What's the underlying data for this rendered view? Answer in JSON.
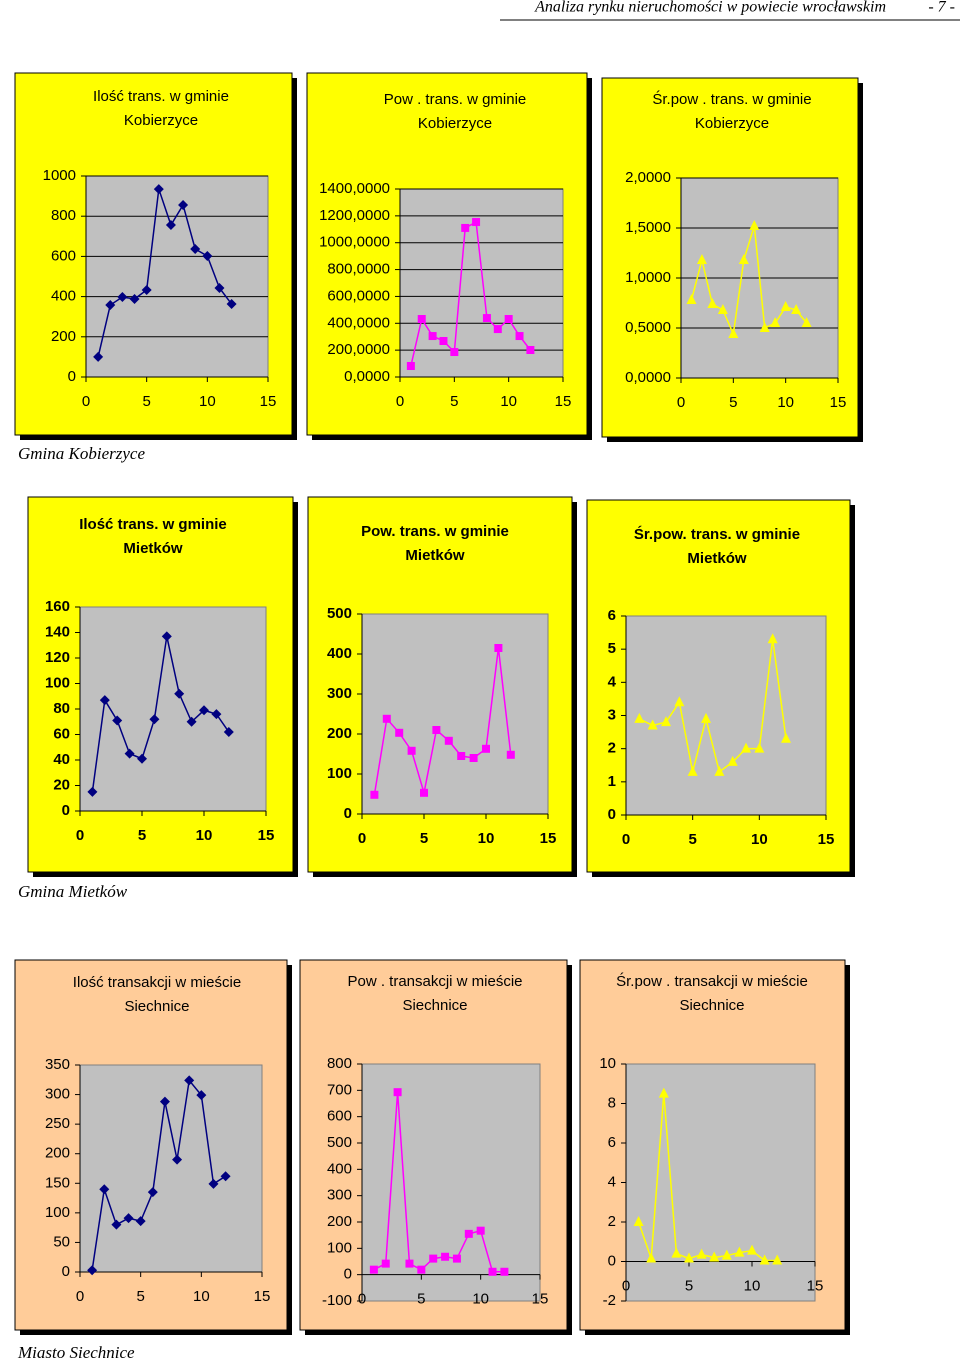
{
  "header": {
    "title": "Analiza rynku nieruchomości  w powiecie wrocławskim",
    "page": "- 7 -"
  },
  "sections": [
    "Gmina Kobierzyce",
    "Gmina Mietków",
    "Miasto Siechnice"
  ],
  "chart_data": [
    {
      "type": "line",
      "title": [
        "Ilość trans. w gminie",
        "Kobierzyce"
      ],
      "background": "#ffff00",
      "color": "#000080",
      "marker": "diamond",
      "x": [
        1,
        2,
        3,
        4,
        5,
        6,
        7,
        8,
        9,
        10,
        11,
        12
      ],
      "values": [
        100,
        358,
        398,
        388,
        433,
        935,
        756,
        856,
        637,
        602,
        443,
        363
      ],
      "xlim": [
        0,
        15
      ],
      "xticks": [
        0,
        5,
        10,
        15
      ],
      "ylim": [
        0,
        1000
      ],
      "yticks": [
        0,
        200,
        400,
        600,
        800,
        1000
      ],
      "grid": true
    },
    {
      "type": "line",
      "title": [
        "Pow . trans. w gminie",
        "Kobierzyce"
      ],
      "background": "#ffff00",
      "color": "#ff00ff",
      "marker": "square",
      "x": [
        1,
        2,
        3,
        4,
        5,
        6,
        7,
        8,
        9,
        10,
        11,
        12
      ],
      "values": [
        82,
        432,
        305,
        268,
        186,
        1110,
        1154,
        439,
        357,
        432,
        305,
        201
      ],
      "xlim": [
        0,
        15
      ],
      "xticks": [
        0,
        5,
        10,
        15
      ],
      "ylim": [
        0,
        1400
      ],
      "yticks": [
        {
          "value": 0,
          "label": "0,0000"
        },
        {
          "value": 200,
          "label": "200,0000"
        },
        {
          "value": 400,
          "label": "400,0000"
        },
        {
          "value": 600,
          "label": "600,0000"
        },
        {
          "value": 800,
          "label": "800,0000"
        },
        {
          "value": 1000,
          "label": "1000,0000"
        },
        {
          "value": 1200,
          "label": "1200,0000"
        },
        {
          "value": 1400,
          "label": "1400,0000"
        }
      ],
      "grid": true
    },
    {
      "type": "line",
      "title": [
        "Śr.pow . trans. w gminie",
        "Kobierzyce"
      ],
      "background": "#ffff00",
      "color": "#ffff00",
      "marker": "triangle",
      "x": [
        1,
        2,
        3,
        4,
        5,
        6,
        7,
        8,
        9,
        10,
        11,
        12
      ],
      "values": [
        0.78,
        1.18,
        0.74,
        0.68,
        0.44,
        1.18,
        1.52,
        0.5,
        0.55,
        0.71,
        0.68,
        0.55
      ],
      "xlim": [
        0,
        15
      ],
      "xticks": [
        0,
        5,
        10,
        15
      ],
      "ylim": [
        0,
        2
      ],
      "yticks": [
        {
          "value": 0,
          "label": "0,0000"
        },
        {
          "value": 0.5,
          "label": "0,5000"
        },
        {
          "value": 1,
          "label": "1,0000"
        },
        {
          "value": 1.5,
          "label": "1,5000"
        },
        {
          "value": 2,
          "label": "2,0000"
        }
      ],
      "grid": true
    },
    {
      "type": "line",
      "title": [
        "Ilość trans. w gminie",
        "Mietków"
      ],
      "background": "#ffff00",
      "color": "#000080",
      "marker": "diamond",
      "bold": true,
      "x": [
        1,
        2,
        3,
        4,
        5,
        6,
        7,
        8,
        9,
        10,
        11,
        12
      ],
      "values": [
        15,
        87,
        71,
        45,
        41,
        72,
        137,
        92,
        70,
        79,
        76,
        62
      ],
      "xlim": [
        0,
        15
      ],
      "xticks": [
        0,
        5,
        10,
        15
      ],
      "ylim": [
        0,
        160
      ],
      "yticks": [
        0,
        20,
        40,
        60,
        80,
        100,
        120,
        140,
        160
      ],
      "grid": false
    },
    {
      "type": "line",
      "title": [
        "Pow. trans. w gminie",
        "Mietków"
      ],
      "background": "#ffff00",
      "color": "#ff00ff",
      "marker": "square",
      "bold": true,
      "x": [
        1,
        2,
        3,
        4,
        5,
        6,
        7,
        8,
        9,
        10,
        11,
        12
      ],
      "values": [
        48,
        238,
        203,
        158,
        53,
        210,
        183,
        145,
        140,
        163,
        415,
        148
      ],
      "xlim": [
        0,
        15
      ],
      "xticks": [
        0,
        5,
        10,
        15
      ],
      "ylim": [
        0,
        500
      ],
      "yticks": [
        0,
        100,
        200,
        300,
        400,
        500
      ],
      "grid": false
    },
    {
      "type": "line",
      "title": [
        "Śr.pow. trans. w gminie",
        "Mietków"
      ],
      "background": "#ffff00",
      "color": "#ffff00",
      "marker": "triangle",
      "bold": true,
      "x": [
        1,
        2,
        3,
        4,
        5,
        6,
        7,
        8,
        9,
        10,
        11,
        12
      ],
      "values": [
        2.9,
        2.7,
        2.8,
        3.4,
        1.3,
        2.9,
        1.3,
        1.6,
        2.0,
        2.0,
        5.3,
        2.3
      ],
      "xlim": [
        0,
        15
      ],
      "xticks": [
        0,
        5,
        10,
        15
      ],
      "ylim": [
        0,
        6
      ],
      "yticks": [
        0,
        1,
        2,
        3,
        4,
        5,
        6
      ],
      "grid": false
    },
    {
      "type": "line",
      "title": [
        "Ilość transakcji w  mieście",
        "Siechnice"
      ],
      "background": "#ffcc99",
      "color": "#000080",
      "marker": "diamond",
      "x": [
        1,
        2,
        3,
        4,
        5,
        6,
        7,
        8,
        9,
        10,
        11,
        12
      ],
      "values": [
        3,
        140,
        80,
        91,
        86,
        135,
        288,
        190,
        324,
        299,
        149,
        162
      ],
      "xlim": [
        0,
        15
      ],
      "xticks": [
        0,
        5,
        10,
        15
      ],
      "ylim": [
        0,
        350
      ],
      "yticks": [
        0,
        50,
        100,
        150,
        200,
        250,
        300,
        350
      ],
      "grid": false
    },
    {
      "type": "line",
      "title": [
        "Pow . transakcji w  mieście",
        "Siechnice"
      ],
      "background": "#ffcc99",
      "color": "#ff00ff",
      "marker": "square",
      "x": [
        1,
        2,
        3,
        4,
        5,
        6,
        7,
        8,
        9,
        10,
        11,
        12
      ],
      "values": [
        19,
        42,
        693,
        42,
        19,
        61,
        68,
        61,
        155,
        167,
        11,
        11
      ],
      "xlim": [
        0,
        15
      ],
      "xticks": [
        0,
        5,
        10,
        15
      ],
      "ylim": [
        -100,
        800
      ],
      "yticks": [
        -100,
        0,
        100,
        200,
        300,
        400,
        500,
        600,
        700,
        800
      ],
      "grid": false
    },
    {
      "type": "line",
      "title": [
        "Śr.pow . transakcji w  mieście",
        "Siechnice"
      ],
      "background": "#ffcc99",
      "color": "#ffff00",
      "marker": "triangle",
      "x": [
        1,
        2,
        3,
        4,
        5,
        6,
        7,
        8,
        9,
        10,
        11,
        12
      ],
      "values": [
        2.0,
        0.15,
        8.5,
        0.4,
        0.15,
        0.35,
        0.2,
        0.3,
        0.45,
        0.55,
        0.05,
        0.05
      ],
      "xlim": [
        0,
        15
      ],
      "xticks": [
        0,
        5,
        10,
        15
      ],
      "ylim": [
        -2,
        10
      ],
      "yticks": [
        -2,
        0,
        2,
        4,
        6,
        8,
        10
      ],
      "grid": false
    }
  ]
}
